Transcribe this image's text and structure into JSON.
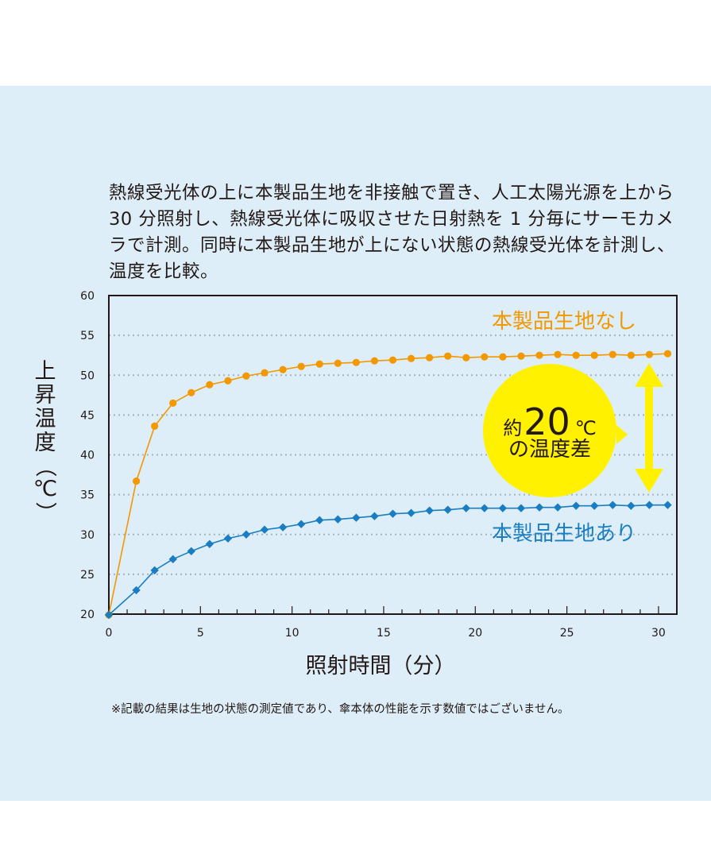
{
  "description": "熱線受光体の上に本製品生地を非接触で置き、人工太陽光源を上から 30 分照射し、熱線受光体に吸収させた日射熱を 1 分毎にサーモカメラで計測。同時に本製品生地が上にない状態の熱線受光体を計測し、温度を比較。",
  "footnote": "※記載の結果は生地の状態の測定値であり、傘本体の性能を示す数値ではございません。",
  "callout": {
    "approx": "約",
    "number": "20",
    "unit": "℃",
    "line2": "の温度差"
  },
  "colors": {
    "orange": "#f39800",
    "blue": "#1a7dc1",
    "yellow": "#fff100",
    "panel": "#ddeef8"
  },
  "chart_data": {
    "type": "line",
    "xlabel": "照射時間（分）",
    "ylabel": "上昇温度（℃）",
    "x_ticks": [
      0,
      5,
      10,
      15,
      20,
      25,
      30
    ],
    "y_ticks": [
      20,
      25,
      30,
      35,
      40,
      45,
      50,
      55,
      60
    ],
    "xlim": [
      0,
      31
    ],
    "ylim": [
      20,
      60
    ],
    "grid": true,
    "x": [
      0,
      1.5,
      2.5,
      3.5,
      4.5,
      5.5,
      6.5,
      7.5,
      8.5,
      9.5,
      10.5,
      11.5,
      12.5,
      13.5,
      14.5,
      15.5,
      16.5,
      17.5,
      18.5,
      19.5,
      20.5,
      21.5,
      22.5,
      23.5,
      24.5,
      25.5,
      26.5,
      27.5,
      28.5,
      29.5,
      30.5
    ],
    "series": [
      {
        "name": "本製品生地なし",
        "color": "#f39800",
        "marker": "circle",
        "values": [
          19.9,
          36.7,
          43.6,
          46.5,
          47.8,
          48.8,
          49.3,
          49.9,
          50.3,
          50.7,
          51.1,
          51.4,
          51.5,
          51.6,
          51.8,
          51.9,
          52.1,
          52.2,
          52.4,
          52.2,
          52.3,
          52.3,
          52.4,
          52.5,
          52.6,
          52.5,
          52.5,
          52.6,
          52.5,
          52.6,
          52.7
        ]
      },
      {
        "name": "本製品生地あり",
        "color": "#1a7dc1",
        "marker": "diamond",
        "values": [
          19.9,
          23.0,
          25.5,
          26.9,
          27.9,
          28.8,
          29.5,
          30.0,
          30.6,
          30.9,
          31.3,
          31.8,
          31.9,
          32.1,
          32.3,
          32.6,
          32.7,
          33.0,
          33.1,
          33.3,
          33.3,
          33.3,
          33.3,
          33.4,
          33.4,
          33.6,
          33.6,
          33.7,
          33.6,
          33.7,
          33.7
        ]
      }
    ]
  }
}
